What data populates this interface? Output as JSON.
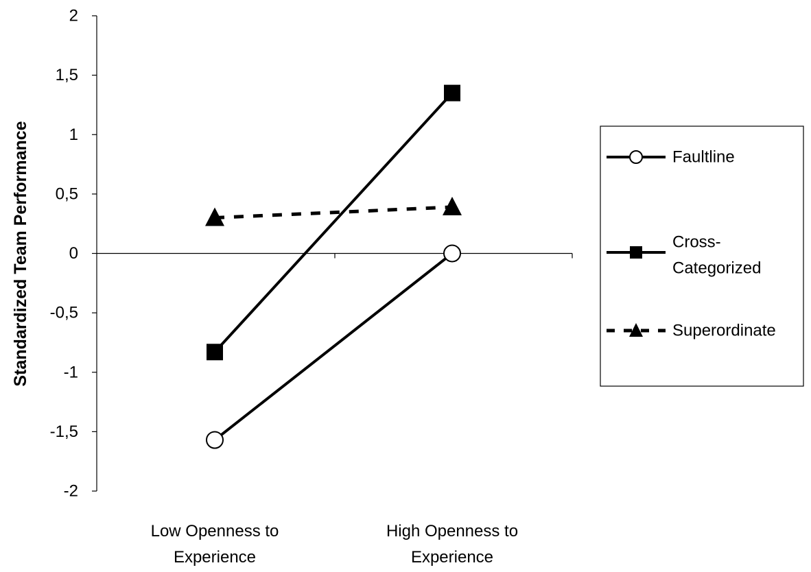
{
  "chart_data": {
    "type": "line",
    "categories": [
      [
        "Low Openness to",
        "Experience"
      ],
      [
        "High Openness to",
        "Experience"
      ]
    ],
    "series": [
      {
        "name": "Faultline",
        "values": [
          -1.57,
          0
        ],
        "line": "solid",
        "marker": "circle-open"
      },
      {
        "name": "Cross-Categorized",
        "name_lines": [
          "Cross-",
          "Categorized"
        ],
        "values": [
          -0.83,
          1.35
        ],
        "line": "solid",
        "marker": "square"
      },
      {
        "name": "Superordinate",
        "values": [
          0.3,
          0.39
        ],
        "line": "dashed",
        "marker": "triangle"
      }
    ],
    "title": "",
    "xlabel": "",
    "ylabel": "Standardized Team Performance",
    "ylim": [
      -2,
      2
    ],
    "yticks": [
      2,
      1.5,
      1,
      0.5,
      0,
      -0.5,
      -1,
      -1.5,
      -2
    ],
    "ytick_labels": [
      "2",
      "1,5",
      "1",
      "0,5",
      "0",
      "-0,5",
      "-1",
      "-1,5",
      "-2"
    ],
    "grid": false,
    "legend": "right",
    "colors": {
      "line": "#000000",
      "background": "#ffffff"
    }
  }
}
